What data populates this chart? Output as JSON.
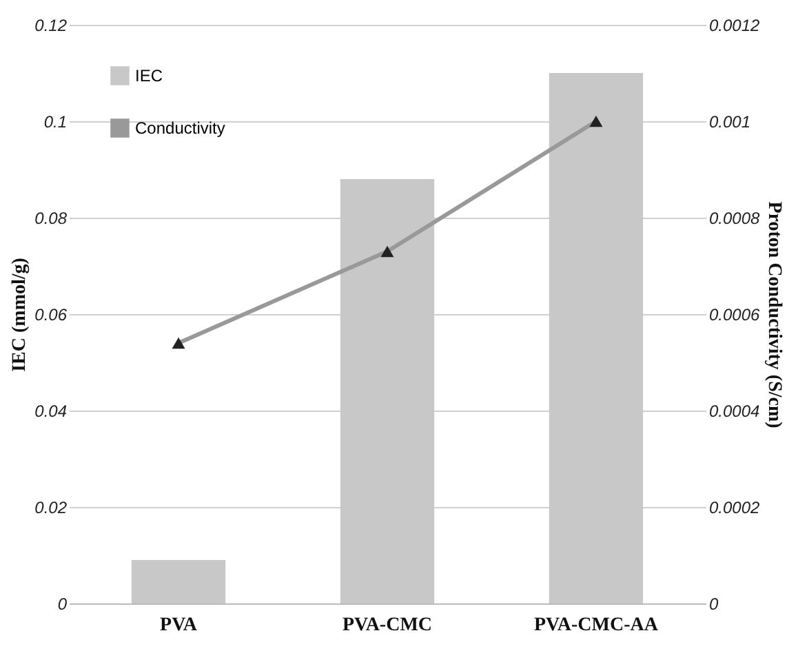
{
  "chart_data": {
    "type": "bar",
    "categories": [
      "PVA",
      "PVA-CMC",
      "PVA-CMC-AA"
    ],
    "ylabel": "IEC (mmol/g)",
    "y2label": "Proton Conductivity (S/cm)",
    "ylim": [
      0,
      0.12
    ],
    "yticks": [
      0,
      0.02,
      0.04,
      0.06,
      0.08,
      0.1,
      0.12
    ],
    "y2lim": [
      0,
      0.0012
    ],
    "y2ticks": [
      0,
      0.0002,
      0.0004,
      0.0006,
      0.0008,
      0.001,
      0.0012
    ],
    "grid": "y",
    "legend": "top left",
    "series": [
      {
        "name": "IEC",
        "color": "#c8c8c8",
        "values": [
          0.009,
          0.088,
          0.11
        ]
      },
      {
        "name": "Conductivity",
        "type": "line",
        "axis": "y2",
        "color": "#999999",
        "marker": "triangle",
        "line_style": "solid",
        "values": [
          0.00054,
          0.00073,
          0.001
        ]
      }
    ]
  }
}
